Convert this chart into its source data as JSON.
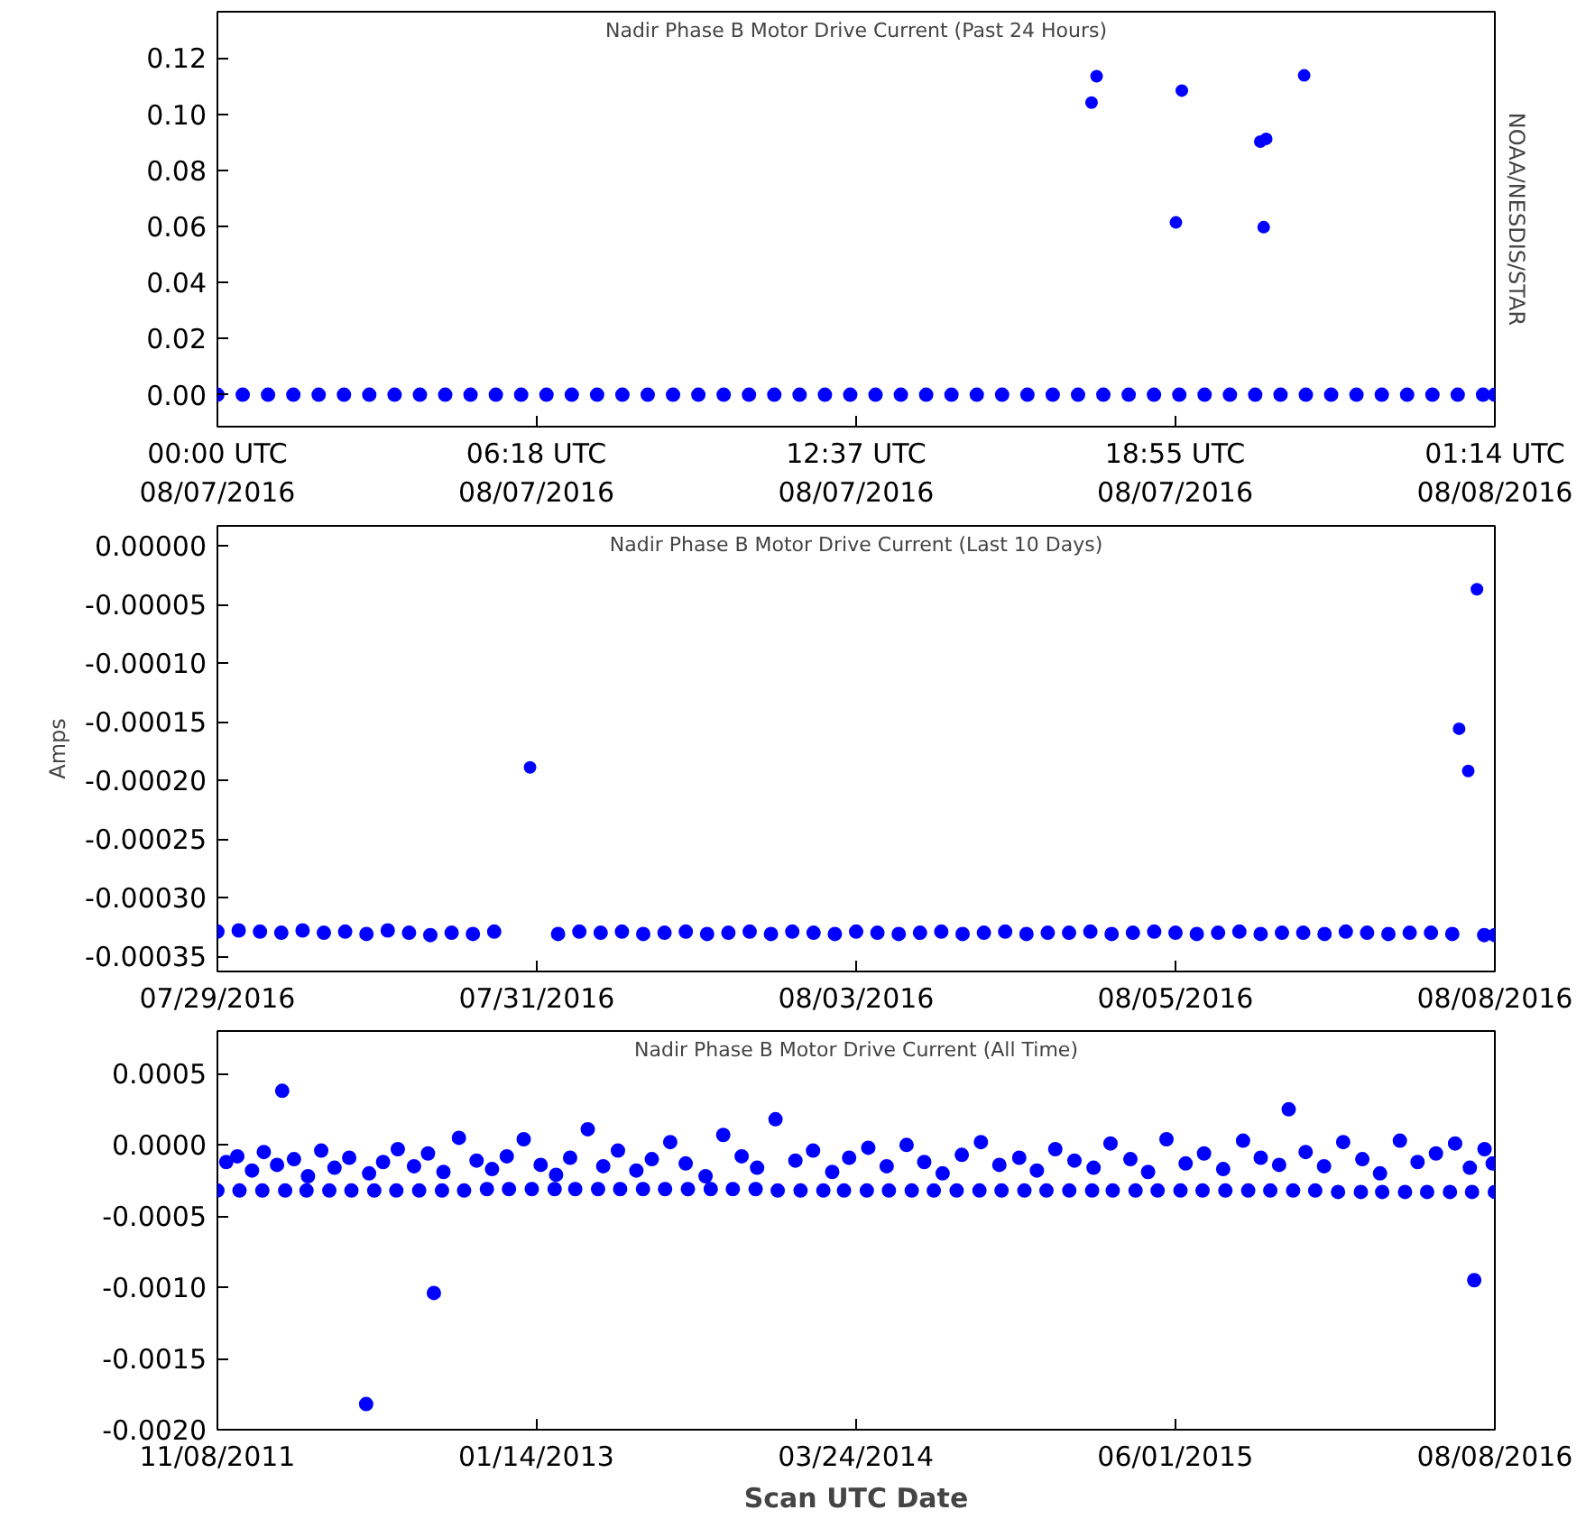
{
  "chart_data": [
    {
      "type": "scatter",
      "title": "Nadir Phase B Motor Drive Current (Past 24 Hours)",
      "marker": "circle",
      "grid": false,
      "annotations": [
        "NOAA/NESDIS/STAR"
      ],
      "xlim": [
        "2016-08-07T00:00",
        "2016-08-08T01:14"
      ],
      "ylim": [
        -0.0114,
        0.1365
      ],
      "xticks": [
        {
          "value": "2016-08-07T00:00",
          "label": "00:00 UTC\n08/07/2016"
        },
        {
          "value": "2016-08-07T06:18",
          "label": "06:18 UTC\n08/07/2016"
        },
        {
          "value": "2016-08-07T12:37",
          "label": "12:37 UTC\n08/07/2016"
        },
        {
          "value": "2016-08-07T18:55",
          "label": "18:55 UTC\n08/07/2016"
        },
        {
          "value": "2016-08-08T01:14",
          "label": "01:14 UTC\n08/08/2016"
        }
      ],
      "yticks": [
        {
          "value": 0,
          "label": "0.00"
        },
        {
          "value": 0.02,
          "label": "0.02"
        },
        {
          "value": 0.04,
          "label": "0.04"
        },
        {
          "value": 0.06,
          "label": "0.06"
        },
        {
          "value": 0.08,
          "label": "0.08"
        },
        {
          "value": 0.1,
          "label": "0.10"
        },
        {
          "value": 0.12,
          "label": "0.12"
        }
      ],
      "series": [
        {
          "color": "#0000ff",
          "x": [
            "2016-08-07T00:00",
            "2016-08-07T00:30",
            "2016-08-07T01:00",
            "2016-08-07T01:30",
            "2016-08-07T02:00",
            "2016-08-07T02:30",
            "2016-08-07T03:00",
            "2016-08-07T03:30",
            "2016-08-07T04:00",
            "2016-08-07T04:30",
            "2016-08-07T05:00",
            "2016-08-07T05:30",
            "2016-08-07T06:00",
            "2016-08-07T06:30",
            "2016-08-07T07:00",
            "2016-08-07T07:30",
            "2016-08-07T08:00",
            "2016-08-07T08:30",
            "2016-08-07T09:00",
            "2016-08-07T09:30",
            "2016-08-07T10:00",
            "2016-08-07T10:30",
            "2016-08-07T11:00",
            "2016-08-07T11:30",
            "2016-08-07T12:00",
            "2016-08-07T12:30",
            "2016-08-07T13:00",
            "2016-08-07T13:30",
            "2016-08-07T14:00",
            "2016-08-07T14:30",
            "2016-08-07T15:00",
            "2016-08-07T15:30",
            "2016-08-07T16:00",
            "2016-08-07T16:30",
            "2016-08-07T17:00",
            "2016-08-07T17:30",
            "2016-08-07T18:00",
            "2016-08-07T18:30",
            "2016-08-07T19:00",
            "2016-08-07T19:30",
            "2016-08-07T20:00",
            "2016-08-07T20:30",
            "2016-08-07T21:00",
            "2016-08-07T21:30",
            "2016-08-07T22:00",
            "2016-08-07T22:30",
            "2016-08-07T23:00",
            "2016-08-07T23:30",
            "2016-08-08T00:00",
            "2016-08-08T00:30",
            "2016-08-08T01:00",
            "2016-08-08T01:14"
          ],
          "values": [
            0,
            0,
            0,
            0,
            0,
            0,
            0,
            0,
            0,
            0,
            0,
            0,
            0,
            0,
            0,
            0,
            0,
            0,
            0,
            0,
            0,
            0,
            0,
            0,
            0,
            0,
            0,
            0,
            0,
            0,
            0,
            0,
            0,
            0,
            0,
            0,
            0,
            0,
            0,
            0,
            0,
            0,
            0,
            0,
            0,
            0,
            0,
            0,
            0,
            0,
            0,
            0
          ]
        },
        {
          "color": "#0000ff",
          "x": [
            "2016-08-07T17:16",
            "2016-08-07T17:22",
            "2016-08-07T18:56",
            "2016-08-07T19:03",
            "2016-08-07T20:36",
            "2016-08-07T20:43",
            "2016-08-07T20:40",
            "2016-08-07T21:28"
          ],
          "values": [
            0.1041,
            0.1135,
            0.0614,
            0.1084,
            0.0902,
            0.0912,
            0.0597,
            0.1138
          ]
        }
      ]
    },
    {
      "type": "scatter",
      "title": "Nadir Phase B Motor Drive Current (Last 10 Days)",
      "ylabel": "Amps",
      "marker": "circle",
      "grid": false,
      "xlim": [
        "2016-07-29T00:00",
        "2016-08-08T00:00"
      ],
      "ylim": [
        -0.000363,
        1.7e-05
      ],
      "xticks": [
        {
          "value": "2016-07-29T00:00",
          "label": "07/29/2016"
        },
        {
          "value": "2016-07-31T12:00",
          "label": "07/31/2016"
        },
        {
          "value": "2016-08-03T00:00",
          "label": "08/03/2016"
        },
        {
          "value": "2016-08-05T12:00",
          "label": "08/05/2016"
        },
        {
          "value": "2016-08-08T00:00",
          "label": "08/08/2016"
        }
      ],
      "yticks": [
        {
          "value": 0,
          "label": "0.00000"
        },
        {
          "value": -5e-05,
          "label": "-0.00005"
        },
        {
          "value": -0.0001,
          "label": "-0.00010"
        },
        {
          "value": -0.00015,
          "label": "-0.00015"
        },
        {
          "value": -0.0002,
          "label": "-0.00020"
        },
        {
          "value": -0.00025,
          "label": "-0.00025"
        },
        {
          "value": -0.0003,
          "label": "-0.00030"
        },
        {
          "value": -0.00035,
          "label": "-0.00035"
        }
      ],
      "series": [
        {
          "color": "#0000ff",
          "x": [
            "2016-07-29T00:00",
            "2016-07-29T04:00",
            "2016-07-29T08:00",
            "2016-07-29T12:00",
            "2016-07-29T16:00",
            "2016-07-29T20:00",
            "2016-07-30T00:00",
            "2016-07-30T04:00",
            "2016-07-30T08:00",
            "2016-07-30T12:00",
            "2016-07-30T16:00",
            "2016-07-30T20:00",
            "2016-07-31T00:00",
            "2016-07-31T04:00",
            "2016-07-31T16:00",
            "2016-07-31T20:00",
            "2016-08-01T00:00",
            "2016-08-01T04:00",
            "2016-08-01T08:00",
            "2016-08-01T12:00",
            "2016-08-01T16:00",
            "2016-08-01T20:00",
            "2016-08-02T00:00",
            "2016-08-02T04:00",
            "2016-08-02T08:00",
            "2016-08-02T12:00",
            "2016-08-02T16:00",
            "2016-08-02T20:00",
            "2016-08-03T00:00",
            "2016-08-03T04:00",
            "2016-08-03T08:00",
            "2016-08-03T12:00",
            "2016-08-03T16:00",
            "2016-08-03T20:00",
            "2016-08-04T00:00",
            "2016-08-04T04:00",
            "2016-08-04T08:00",
            "2016-08-04T12:00",
            "2016-08-04T16:00",
            "2016-08-04T20:00",
            "2016-08-05T00:00",
            "2016-08-05T04:00",
            "2016-08-05T08:00",
            "2016-08-05T12:00",
            "2016-08-05T16:00",
            "2016-08-05T20:00",
            "2016-08-06T00:00",
            "2016-08-06T04:00",
            "2016-08-06T08:00",
            "2016-08-06T12:00",
            "2016-08-06T16:00",
            "2016-08-06T20:00",
            "2016-08-07T00:00",
            "2016-08-07T04:00",
            "2016-08-07T08:00",
            "2016-08-07T12:00",
            "2016-08-07T16:00",
            "2016-08-07T22:00",
            "2016-08-08T00:00"
          ],
          "values": [
            -0.000329,
            -0.000328,
            -0.000329,
            -0.00033,
            -0.000328,
            -0.00033,
            -0.000329,
            -0.000331,
            -0.000328,
            -0.00033,
            -0.000332,
            -0.00033,
            -0.000331,
            -0.000329,
            -0.000331,
            -0.000329,
            -0.00033,
            -0.000329,
            -0.000331,
            -0.00033,
            -0.000329,
            -0.000331,
            -0.00033,
            -0.000329,
            -0.000331,
            -0.000329,
            -0.00033,
            -0.000331,
            -0.000329,
            -0.00033,
            -0.000331,
            -0.00033,
            -0.000329,
            -0.000331,
            -0.00033,
            -0.000329,
            -0.000331,
            -0.00033,
            -0.00033,
            -0.000329,
            -0.000331,
            -0.00033,
            -0.000329,
            -0.00033,
            -0.000331,
            -0.00033,
            -0.000329,
            -0.000331,
            -0.00033,
            -0.00033,
            -0.000331,
            -0.000329,
            -0.00033,
            -0.000331,
            -0.00033,
            -0.00033,
            -0.000331,
            -0.000332,
            -0.000332
          ]
        },
        {
          "color": "#0000ff",
          "x": [
            "2016-07-31T10:44",
            "2016-08-07T17:17",
            "2016-08-07T19:00",
            "2016-08-07T20:38"
          ],
          "values": [
            -0.000189,
            -0.000156,
            -0.000192,
            -3.7e-05
          ]
        }
      ]
    },
    {
      "type": "scatter",
      "title": "Nadir Phase B Motor Drive Current (All Time)",
      "xlabel": "Scan UTC Date",
      "marker": "circle",
      "grid": false,
      "xlim": [
        "2011-11-08",
        "2016-08-08"
      ],
      "ylim": [
        -0.002,
        0.0008
      ],
      "xticks": [
        {
          "value": "2011-11-08",
          "label": "11/08/2011"
        },
        {
          "value": "2013-01-14",
          "label": "01/14/2013"
        },
        {
          "value": "2014-03-24",
          "label": "03/24/2014"
        },
        {
          "value": "2015-06-01",
          "label": "06/01/2015"
        },
        {
          "value": "2016-08-08",
          "label": "08/08/2016"
        }
      ],
      "yticks": [
        {
          "value": 0.0005,
          "label": "0.0005"
        },
        {
          "value": 0,
          "label": "0.0000"
        },
        {
          "value": -0.0005,
          "label": "-0.0005"
        },
        {
          "value": -0.001,
          "label": "-0.0010"
        },
        {
          "value": -0.0015,
          "label": "-0.0015"
        },
        {
          "value": -0.002,
          "label": "-0.0020"
        }
      ],
      "series": [
        {
          "color": "#0000ff",
          "x": [
            "2011-11-08",
            "2011-12-08",
            "2012-01-08",
            "2012-02-08",
            "2012-03-08",
            "2012-04-08",
            "2012-05-08",
            "2012-06-08",
            "2012-07-08",
            "2012-08-08",
            "2012-09-08",
            "2012-10-08",
            "2012-11-08",
            "2012-12-08",
            "2013-01-08",
            "2013-02-08",
            "2013-03-08",
            "2013-04-08",
            "2013-05-08",
            "2013-06-08",
            "2013-07-08",
            "2013-08-08",
            "2013-09-08",
            "2013-10-08",
            "2013-11-08",
            "2013-12-08",
            "2014-01-08",
            "2014-02-08",
            "2014-03-08",
            "2014-04-08",
            "2014-05-08",
            "2014-06-08",
            "2014-07-08",
            "2014-08-08",
            "2014-09-08",
            "2014-10-08",
            "2014-11-08",
            "2014-12-08",
            "2015-01-08",
            "2015-02-08",
            "2015-03-08",
            "2015-04-08",
            "2015-05-08",
            "2015-06-08",
            "2015-07-08",
            "2015-08-08",
            "2015-09-08",
            "2015-10-08",
            "2015-11-08",
            "2015-12-08",
            "2016-01-08",
            "2016-02-08",
            "2016-03-08",
            "2016-04-08",
            "2016-05-08",
            "2016-06-08",
            "2016-07-08",
            "2016-08-08"
          ],
          "values": [
            -0.00032,
            -0.00032,
            -0.00032,
            -0.00032,
            -0.00032,
            -0.00032,
            -0.00032,
            -0.00032,
            -0.00032,
            -0.00032,
            -0.00032,
            -0.00032,
            -0.00031,
            -0.00031,
            -0.00031,
            -0.00031,
            -0.00031,
            -0.00031,
            -0.00031,
            -0.00031,
            -0.00031,
            -0.00031,
            -0.00031,
            -0.00031,
            -0.00031,
            -0.00032,
            -0.00032,
            -0.00032,
            -0.00032,
            -0.00032,
            -0.00032,
            -0.00032,
            -0.00032,
            -0.00032,
            -0.00032,
            -0.00032,
            -0.00032,
            -0.00032,
            -0.00032,
            -0.00032,
            -0.00032,
            -0.00032,
            -0.00032,
            -0.00032,
            -0.00032,
            -0.00032,
            -0.00032,
            -0.00032,
            -0.00032,
            -0.00032,
            -0.00033,
            -0.00033,
            -0.00033,
            -0.00033,
            -0.00033,
            -0.00033,
            -0.00033,
            -0.00033
          ]
        },
        {
          "color": "#0000ff",
          "x": [
            "2011-11-20",
            "2011-12-05",
            "2011-12-25",
            "2012-01-10",
            "2012-01-28",
            "2012-02-04",
            "2012-02-20",
            "2012-03-10",
            "2012-03-28",
            "2012-04-15",
            "2012-05-05",
            "2012-05-28",
            "2012-06-01",
            "2012-06-20",
            "2012-07-10",
            "2012-08-01",
            "2012-08-20",
            "2012-08-28",
            "2012-09-10",
            "2012-10-01",
            "2012-10-25",
            "2012-11-15",
            "2012-12-05",
            "2012-12-28",
            "2013-01-20",
            "2013-02-10",
            "2013-03-01",
            "2013-03-25",
            "2013-04-15",
            "2013-05-05",
            "2013-05-30",
            "2013-06-20",
            "2013-07-15",
            "2013-08-05",
            "2013-09-01",
            "2013-09-25",
            "2013-10-20",
            "2013-11-10",
            "2013-12-05",
            "2014-01-01",
            "2014-01-25",
            "2014-02-20",
            "2014-03-15",
            "2014-04-10",
            "2014-05-05",
            "2014-06-01",
            "2014-06-25",
            "2014-07-20",
            "2014-08-15",
            "2014-09-10",
            "2014-10-05",
            "2014-11-01",
            "2014-11-25",
            "2014-12-20",
            "2015-01-15",
            "2015-02-10",
            "2015-03-05",
            "2015-04-01",
            "2015-04-25",
            "2015-05-20",
            "2015-06-15",
            "2015-07-10",
            "2015-08-05",
            "2015-09-01",
            "2015-09-25",
            "2015-10-20",
            "2015-11-02",
            "2015-11-25",
            "2015-12-20",
            "2016-01-15",
            "2016-02-10",
            "2016-03-05",
            "2016-04-01",
            "2016-04-25",
            "2016-05-20",
            "2016-06-15",
            "2016-07-05",
            "2016-07-11",
            "2016-07-25",
            "2016-08-05"
          ],
          "values": [
            -0.00012,
            -8e-05,
            -0.00018,
            -5e-05,
            -0.00014,
            0.00038,
            -0.0001,
            -0.00022,
            -4e-05,
            -0.00016,
            -9e-05,
            -0.00182,
            -0.0002,
            -0.00012,
            -3e-05,
            -0.00015,
            -6e-05,
            -0.00104,
            -0.00019,
            5e-05,
            -0.00011,
            -0.00017,
            -8e-05,
            4e-05,
            -0.00014,
            -0.00021,
            -9e-05,
            0.00011,
            -0.00015,
            -4e-05,
            -0.00018,
            -0.0001,
            2e-05,
            -0.00013,
            -0.00022,
            7e-05,
            -8e-05,
            -0.00016,
            0.00018,
            -0.00011,
            -4e-05,
            -0.00019,
            -9e-05,
            -2e-05,
            -0.00015,
            0.0,
            -0.00012,
            -0.0002,
            -7e-05,
            2e-05,
            -0.00014,
            -9e-05,
            -0.00018,
            -3e-05,
            -0.00011,
            -0.00016,
            1e-05,
            -0.0001,
            -0.00019,
            4e-05,
            -0.00013,
            -6e-05,
            -0.00017,
            3e-05,
            -9e-05,
            -0.00014,
            0.00025,
            -5e-05,
            -0.00015,
            2e-05,
            -0.0001,
            -0.0002,
            3e-05,
            -0.00012,
            -6e-05,
            1e-05,
            -0.00016,
            -0.00095,
            -3e-05,
            -0.00013
          ]
        }
      ]
    }
  ]
}
